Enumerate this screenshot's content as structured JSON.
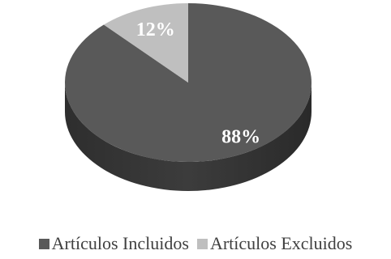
{
  "chart_data": {
    "type": "pie",
    "title": "",
    "slices": [
      {
        "name": "Artículos Incluidos",
        "value": 88,
        "label": "88%",
        "color": "#595959"
      },
      {
        "name": "Artículos Excluidos",
        "value": 12,
        "label": "12%",
        "color": "#bfbfbf"
      }
    ],
    "legend_placement": "bottom",
    "style": "3d"
  }
}
